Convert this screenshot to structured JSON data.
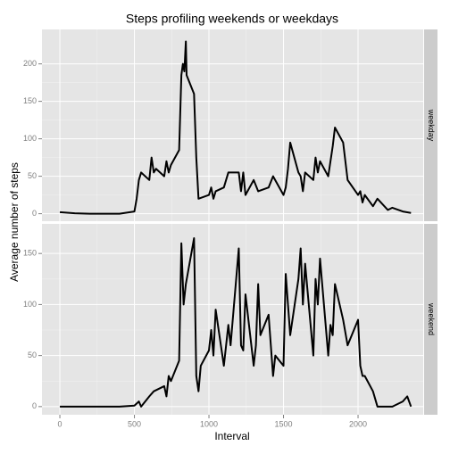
{
  "chart_data": {
    "type": "line",
    "title": "Steps profiling weekends or weekdays",
    "xlabel": "Interval",
    "ylabel": "Average number of steps",
    "color": "#000000",
    "grid": true,
    "xlim": [
      -120,
      2437
    ],
    "xticks": [
      0,
      500,
      1000,
      1500,
      2000
    ],
    "facets": [
      {
        "name": "weekday",
        "ylim": [
          -10,
          246
        ],
        "yticks": [
          0,
          50,
          100,
          150,
          200
        ],
        "x": [
          0,
          100,
          200,
          300,
          400,
          500,
          515,
          530,
          545,
          600,
          615,
          630,
          645,
          700,
          715,
          730,
          745,
          800,
          815,
          825,
          835,
          845,
          850,
          900,
          915,
          930,
          1000,
          1015,
          1030,
          1045,
          1100,
          1130,
          1200,
          1215,
          1230,
          1245,
          1300,
          1330,
          1400,
          1430,
          1500,
          1515,
          1530,
          1545,
          1600,
          1615,
          1630,
          1645,
          1700,
          1715,
          1730,
          1745,
          1800,
          1830,
          1845,
          1900,
          1930,
          2000,
          2015,
          2030,
          2045,
          2100,
          2130,
          2200,
          2230,
          2300,
          2355
        ],
        "values": [
          2,
          0.5,
          0,
          0,
          0,
          3,
          20,
          45,
          55,
          45,
          75,
          55,
          60,
          50,
          70,
          55,
          65,
          85,
          185,
          200,
          190,
          230,
          185,
          160,
          75,
          20,
          25,
          35,
          20,
          30,
          35,
          55,
          55,
          30,
          55,
          25,
          45,
          30,
          35,
          50,
          25,
          35,
          60,
          95,
          55,
          50,
          30,
          55,
          45,
          75,
          55,
          70,
          50,
          90,
          115,
          95,
          45,
          25,
          30,
          15,
          25,
          10,
          20,
          5,
          8,
          3,
          1
        ]
      },
      {
        "name": "weekend",
        "ylim": [
          -8,
          179
        ],
        "yticks": [
          0,
          50,
          100,
          150
        ],
        "x": [
          0,
          100,
          200,
          300,
          400,
          500,
          530,
          545,
          600,
          630,
          700,
          715,
          730,
          745,
          800,
          815,
          830,
          845,
          900,
          915,
          930,
          945,
          1000,
          1015,
          1030,
          1045,
          1100,
          1130,
          1145,
          1200,
          1215,
          1230,
          1245,
          1300,
          1315,
          1330,
          1345,
          1400,
          1430,
          1445,
          1500,
          1515,
          1530,
          1545,
          1600,
          1615,
          1630,
          1645,
          1700,
          1715,
          1730,
          1745,
          1800,
          1815,
          1830,
          1845,
          1900,
          1930,
          2000,
          2015,
          2030,
          2045,
          2100,
          2130,
          2200,
          2230,
          2300,
          2330,
          2355
        ],
        "values": [
          0,
          0,
          0,
          0,
          0,
          1,
          5,
          0,
          10,
          15,
          20,
          10,
          30,
          25,
          45,
          160,
          100,
          120,
          165,
          30,
          15,
          40,
          55,
          75,
          50,
          95,
          40,
          80,
          60,
          155,
          60,
          55,
          110,
          40,
          60,
          120,
          70,
          90,
          30,
          50,
          40,
          130,
          100,
          70,
          125,
          155,
          100,
          140,
          50,
          125,
          100,
          145,
          50,
          80,
          70,
          120,
          85,
          60,
          85,
          40,
          30,
          30,
          15,
          0,
          0,
          0,
          5,
          10,
          0
        ]
      }
    ]
  }
}
